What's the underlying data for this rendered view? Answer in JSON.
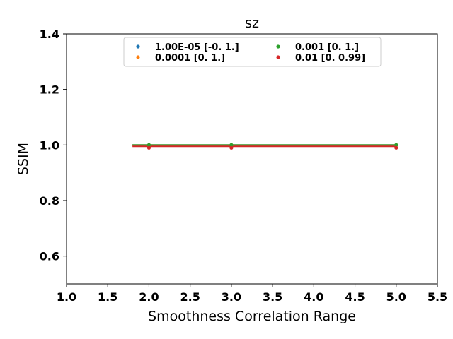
{
  "chart_data": {
    "type": "line",
    "title": "sz",
    "xlabel": "Smoothness Correlation Range",
    "ylabel": "SSIM",
    "xlim": [
      1.0,
      5.5
    ],
    "ylim": [
      0.5,
      1.4
    ],
    "xticks": [
      "1.0",
      "1.5",
      "2.0",
      "2.5",
      "3.0",
      "3.5",
      "4.0",
      "4.5",
      "5.0",
      "5.5"
    ],
    "yticks": [
      "0.6",
      "0.8",
      "1.0",
      "1.2",
      "1.4"
    ],
    "legend_location": "upper center",
    "legend_columns": 2,
    "series": [
      {
        "name": "1.00E-05 [-0.  1.]",
        "color": "#1f77b4",
        "points": [
          [
            2.0,
            1.0
          ],
          [
            3.0,
            1.0
          ],
          [
            5.0,
            1.0
          ]
        ],
        "line_x": [
          1.8,
          5.0
        ],
        "line_y": [
          1.0,
          1.0
        ]
      },
      {
        "name": "0.0001 [0. 1.]",
        "color": "#ff7f0e",
        "points": [
          [
            2.0,
            1.0
          ],
          [
            3.0,
            1.0
          ],
          [
            5.0,
            1.0
          ]
        ],
        "line_x": [
          1.8,
          5.0
        ],
        "line_y": [
          1.0,
          1.0
        ]
      },
      {
        "name": "0.001 [0. 1.]",
        "color": "#2ca02c",
        "points": [
          [
            2.0,
            1.0
          ],
          [
            3.0,
            1.0
          ],
          [
            5.0,
            1.0
          ]
        ],
        "line_x": [
          1.8,
          5.0
        ],
        "line_y": [
          1.0,
          1.0
        ]
      },
      {
        "name": "0.01 [0.   0.99]",
        "color": "#d62728",
        "points": [
          [
            2.0,
            0.99
          ],
          [
            3.0,
            0.99
          ],
          [
            5.0,
            0.99
          ]
        ],
        "line_x": [
          1.8,
          5.0
        ],
        "line_y": [
          0.995,
          0.995
        ]
      }
    ]
  }
}
